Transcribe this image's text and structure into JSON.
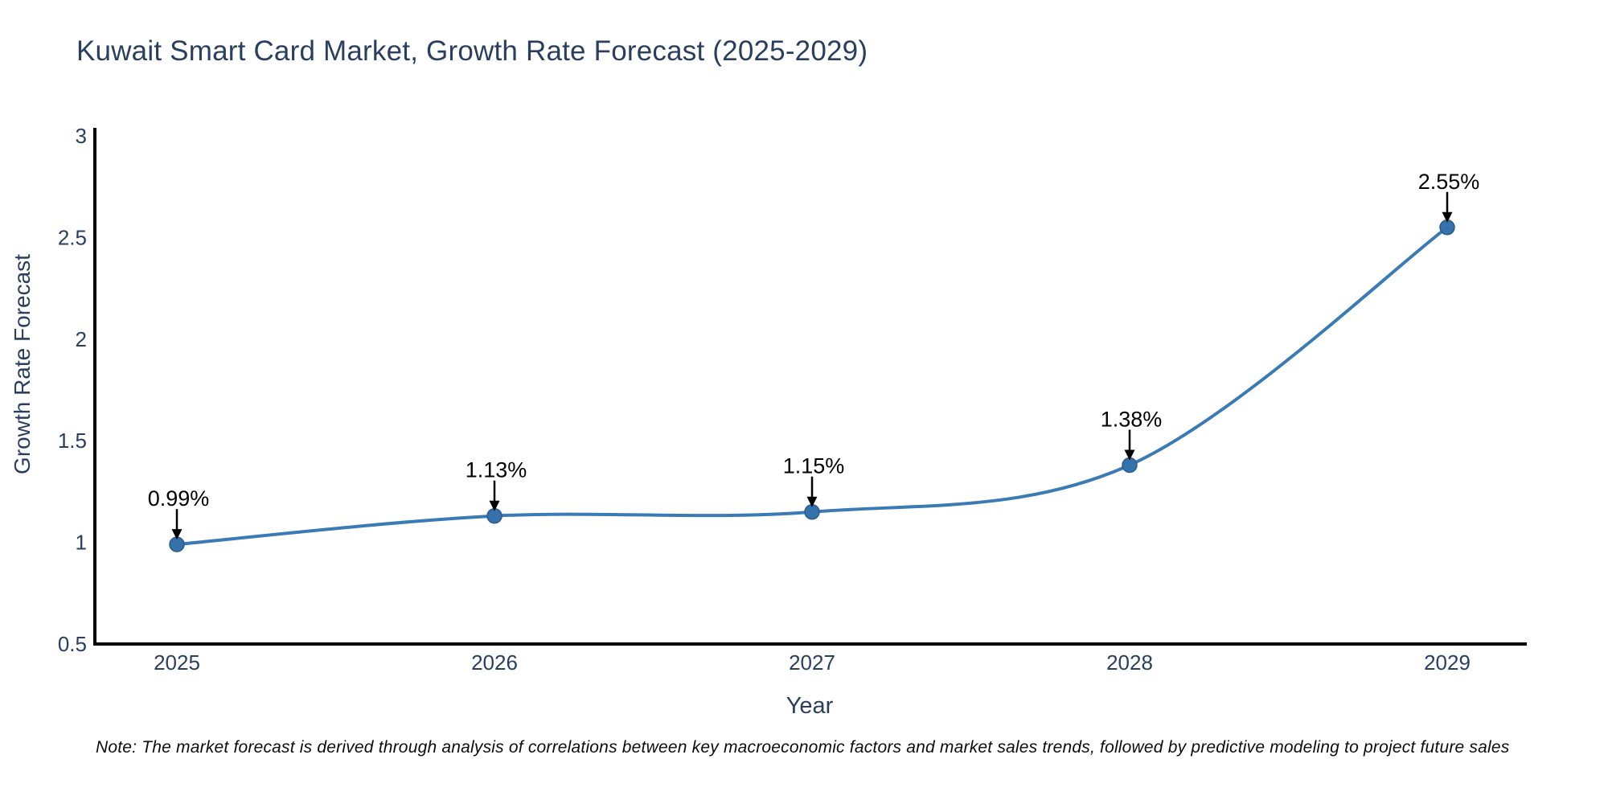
{
  "chart_data": {
    "type": "line",
    "title": "Kuwait Smart Card Market, Growth Rate Forecast (2025-2029)",
    "xlabel": "Year",
    "ylabel": "Growth Rate Forecast",
    "categories": [
      "2025",
      "2026",
      "2027",
      "2028",
      "2029"
    ],
    "series": [
      {
        "name": "Growth Rate Forecast",
        "values": [
          0.99,
          1.13,
          1.15,
          1.38,
          2.55
        ]
      }
    ],
    "point_labels": [
      "0.99%",
      "1.13%",
      "1.15%",
      "1.38%",
      "2.55%"
    ],
    "ylim": [
      0.5,
      3
    ],
    "yticks": [
      "0.5",
      "1",
      "1.5",
      "2",
      "2.5",
      "3"
    ],
    "grid": false,
    "legend_position": "none",
    "line_shape": "spline",
    "marker_style": "circle",
    "annotation_arrows": true,
    "colors": {
      "line": "#3a7ab5",
      "marker": "#3572ab",
      "marker_edge": "#2a5d8c",
      "axis": "#000000",
      "tick_text": "#2a3f5f",
      "annotation_text": "#000000",
      "background": "#ffffff"
    }
  },
  "page": {
    "note": "Note: The market forecast is derived through analysis of correlations between key macroeconomic factors and market sales trends, followed by predictive modeling to project future sales"
  }
}
